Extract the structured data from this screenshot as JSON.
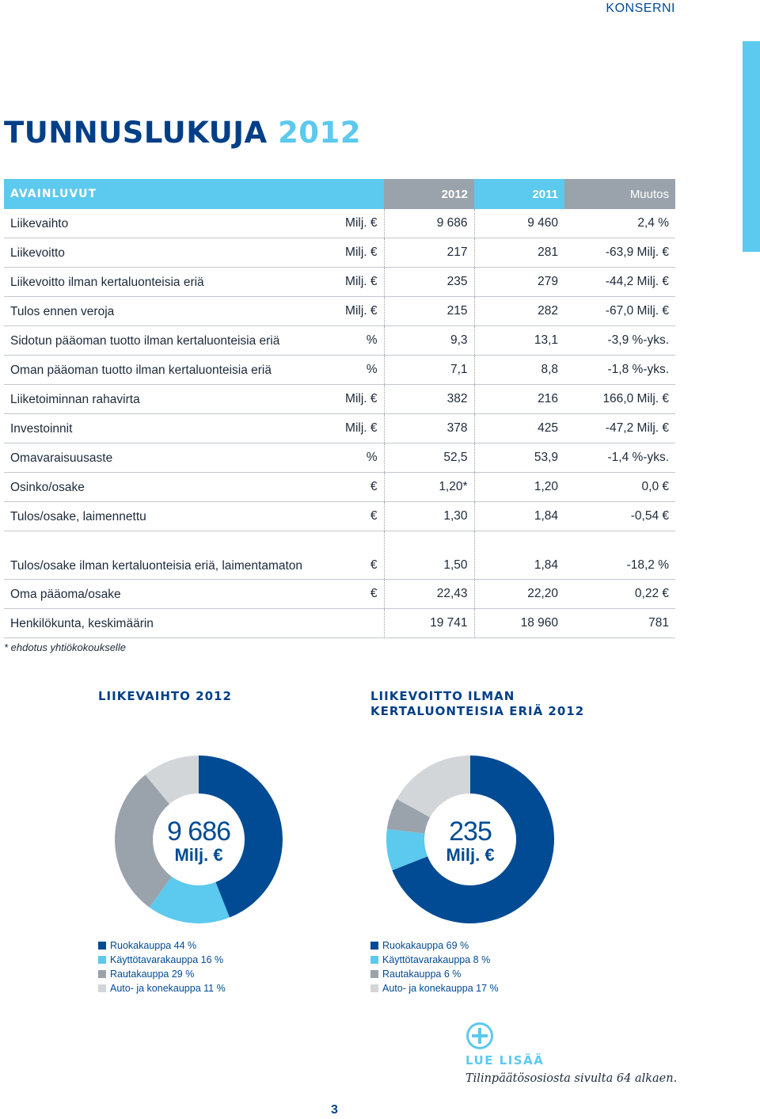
{
  "header": {
    "section": "KONSERNI"
  },
  "title": {
    "part1": "TUNNUSLUKUJA ",
    "part2": "2012"
  },
  "table": {
    "headers": {
      "label": "AVAINLUVUT",
      "unit": "",
      "y2012": "2012",
      "y2011": "2011",
      "change": "Muutos"
    },
    "rows": [
      {
        "label": "Liikevaihto",
        "unit": "Milj. €",
        "v2012": "9 686",
        "v2011": "9 460",
        "change": "2,4 %"
      },
      {
        "label": "Liikevoitto",
        "unit": "Milj. €",
        "v2012": "217",
        "v2011": "281",
        "change": "-63,9 Milj. €"
      },
      {
        "label": "Liikevoitto ilman kertaluonteisia eriä",
        "unit": "Milj. €",
        "v2012": "235",
        "v2011": "279",
        "change": "-44,2 Milj. €"
      },
      {
        "label": "Tulos ennen veroja",
        "unit": "Milj. €",
        "v2012": "215",
        "v2011": "282",
        "change": "-67,0 Milj. €"
      },
      {
        "label": "Sidotun pääoman tuotto ilman kertaluonteisia eriä",
        "unit": "%",
        "v2012": "9,3",
        "v2011": "13,1",
        "change": "-3,9 %-yks."
      },
      {
        "label": "Oman pääoman tuotto ilman kertaluonteisia eriä",
        "unit": "%",
        "v2012": "7,1",
        "v2011": "8,8",
        "change": "-1,8 %-yks."
      },
      {
        "label": "Liiketoiminnan rahavirta",
        "unit": "Milj. €",
        "v2012": "382",
        "v2011": "216",
        "change": "166,0 Milj. €"
      },
      {
        "label": "Investoinnit",
        "unit": "Milj. €",
        "v2012": "378",
        "v2011": "425",
        "change": "-47,2 Milj. €"
      },
      {
        "label": "Omavaraisuusaste",
        "unit": "%",
        "v2012": "52,5",
        "v2011": "53,9",
        "change": "-1,4 %-yks."
      },
      {
        "label": "Osinko/osake",
        "unit": "€",
        "v2012": "1,20*",
        "v2011": "1,20",
        "change": "0,0 €"
      },
      {
        "label": "Tulos/osake, laimennettu",
        "unit": "€",
        "v2012": "1,30",
        "v2011": "1,84",
        "change": "-0,54 €"
      },
      {
        "label": "Tulos/osake ilman kertaluonteisia eriä, laimentamaton",
        "unit": "€",
        "v2012": "1,50",
        "v2011": "1,84",
        "change": "-18,2 %"
      },
      {
        "label": "Oma pääoma/osake",
        "unit": "€",
        "v2012": "22,43",
        "v2011": "22,20",
        "change": "0,22 €"
      },
      {
        "label": "Henkilökunta, keskimäärin",
        "unit": "",
        "v2012": "19 741",
        "v2011": "18 960",
        "change": "781"
      }
    ],
    "footnote": "* ehdotus yhtiökokoukselle"
  },
  "colors": {
    "dark_blue": "#004b93",
    "light_blue": "#5cc9ee",
    "gray": "#9aa3ab",
    "light_gray": "#d3d6d9"
  },
  "chart_data": [
    {
      "type": "pie",
      "title": "LIIKEVAIHTO 2012",
      "center_value": "9 686",
      "center_unit": "Milj. €",
      "categories": [
        "Ruokakauppa",
        "Käyttötavarakauppa",
        "Rautakauppa",
        "Auto- ja konekauppa"
      ],
      "values": [
        44,
        16,
        29,
        11
      ],
      "legend_labels": [
        "Ruokakauppa 44 %",
        "Käyttötavarakauppa 16 %",
        "Rautakauppa 29 %",
        "Auto- ja konekauppa 11 %"
      ],
      "colors": [
        "#004b93",
        "#5cc9ee",
        "#9aa3ab",
        "#d3d6d9"
      ]
    },
    {
      "type": "pie",
      "title_line1": "LIIKEVOITTO ILMAN",
      "title_line2": "KERTALUONTEISIA ERIÄ 2012",
      "center_value": "235",
      "center_unit": "Milj. €",
      "categories": [
        "Ruokakauppa",
        "Käyttötavarakauppa",
        "Rautakauppa",
        "Auto- ja konekauppa"
      ],
      "values": [
        69,
        8,
        6,
        17
      ],
      "legend_labels": [
        "Ruokakauppa 69 %",
        "Käyttötavarakauppa 8 %",
        "Rautakauppa 6 %",
        "Auto- ja konekauppa 17 %"
      ],
      "colors": [
        "#004b93",
        "#5cc9ee",
        "#9aa3ab",
        "#d3d6d9"
      ]
    }
  ],
  "read_more": {
    "icon": "plus-circle-icon",
    "title": "LUE LISÄÄ",
    "text": "Tilinpäätösosiosta sivulta 64 alkaen."
  },
  "page_number": "3"
}
